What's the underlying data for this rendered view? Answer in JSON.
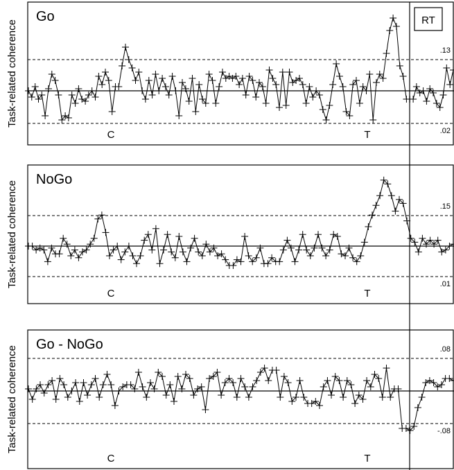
{
  "chart_data": [
    {
      "type": "line",
      "title": "Go",
      "ylabel": "Task-related coherence",
      "upper_threshold": ".13",
      "lower_threshold": ".02",
      "markers": [
        "C",
        "T"
      ],
      "rt_label": "RT",
      "values": [
        0,
        -0.3,
        0.2,
        -0.4,
        -0.2,
        -1.2,
        0.1,
        0.8,
        0.5,
        -0.2,
        -1.4,
        -1.2,
        -1.3,
        -0.2,
        -0.6,
        0.1,
        -0.4,
        -0.5,
        -0.2,
        0,
        -0.3,
        0.7,
        0.3,
        0.9,
        0.5,
        -1,
        0.2,
        0.2,
        1.2,
        2.1,
        1.5,
        1.1,
        0.5,
        0.9,
        0,
        -0.4,
        0.5,
        -0.2,
        0.8,
        0,
        0.6,
        0.2,
        -0.2,
        0.7,
        0,
        -1.2,
        0.4,
        0.1,
        -0.5,
        0.6,
        -1,
        0.3,
        -0.4,
        -0.6,
        0.8,
        0.5,
        -0.6,
        0.2,
        0.9,
        0.6,
        0.7,
        0.6,
        0.7,
        0.3,
        0.6,
        -0.2,
        0.7,
        0.5,
        -0.3,
        0.4,
        0.2,
        -0.6,
        1,
        0.6,
        0.3,
        -0.8,
        0.9,
        -0.7,
        0.9,
        0.4,
        0.5,
        0.6,
        0.3,
        -0.6,
        0.2,
        -0.3,
        0,
        -0.2,
        -0.9,
        -1.4,
        -0.7,
        0.3,
        1.3,
        0.7,
        0.2,
        -1,
        -1.2,
        0.3,
        0.5,
        -0.6,
        0.2,
        0,
        0.8,
        -1.4,
        0.4,
        0.8,
        0.6,
        1.8,
        2.9,
        3.5,
        3.1,
        1.2,
        0.7,
        -0.4,
        -0.4,
        -0.4,
        0.2,
        -0.1,
        0,
        -0.5,
        0.1,
        -0.1,
        -0.6,
        -0.8,
        -0.2,
        1.1,
        0.3,
        1
      ]
    },
    {
      "type": "line",
      "title": "NoGo",
      "ylabel": "Task-related coherence",
      "upper_threshold": ".15",
      "lower_threshold": ".01",
      "markers": [
        "C",
        "T"
      ],
      "values": [
        0,
        0,
        -0.2,
        -0.1,
        -0.2,
        -0.8,
        -0.1,
        -0.4,
        -0.4,
        0.4,
        0.1,
        -0.5,
        -0.2,
        -0.6,
        -0.3,
        -0.2,
        0.1,
        0.4,
        1.4,
        1.6,
        0.7,
        -0.5,
        -0.2,
        0,
        -0.7,
        -0.3,
        0,
        -0.5,
        -0.9,
        -0.5,
        0.3,
        0.6,
        -0.2,
        0.9,
        -0.9,
        -0.2,
        0.6,
        -0.3,
        -0.6,
        0.5,
        -0.3,
        -0.8,
        -0.1,
        0.4,
        -0.3,
        -0.5,
        0.1,
        -0.3,
        -0.1,
        -0.5,
        -0.4,
        -0.7,
        -1,
        -1,
        -0.7,
        -0.8,
        0.5,
        -0.5,
        -0.8,
        -0.6,
        -0.1,
        -0.9,
        -0.9,
        -0.6,
        -0.8,
        -0.8,
        -0.2,
        0.3,
        -0.1,
        -0.8,
        -0.2,
        0.6,
        -0.2,
        -0.5,
        -0.1,
        0.6,
        -0.1,
        -0.5,
        -0.2,
        0.6,
        0.5,
        -0.4,
        -0.5,
        -0.1,
        -0.6,
        -0.8,
        -0.5,
        0.2,
        1,
        1.6,
        2.1,
        2.6,
        3.4,
        3.2,
        2.6,
        1.8,
        2.4,
        2.2,
        1.3,
        0.4,
        0.2,
        -0.3,
        0.4,
        0.1,
        0.3,
        0.1,
        0.3,
        -0.3,
        -0.2,
        0,
        0.1
      ]
    },
    {
      "type": "line",
      "title": "Go - NoGo",
      "ylabel": "Task-related coherence",
      "upper_threshold": ".08",
      "lower_threshold": "-.08",
      "markers": [
        "C",
        "T"
      ],
      "values": [
        0.1,
        -0.4,
        0.1,
        0.3,
        -0.1,
        0.3,
        0.5,
        -0.4,
        0.6,
        0.3,
        -0.3,
        0,
        0.4,
        -0.5,
        0.4,
        -0.2,
        0.3,
        0.6,
        -0.3,
        0.3,
        0.8,
        0.3,
        -0.7,
        0,
        0.2,
        0.3,
        0.3,
        0.1,
        0.9,
        0.2,
        -0.3,
        0.4,
        0.1,
        0.9,
        0.7,
        -0.2,
        0.3,
        -0.5,
        0.7,
        0.1,
        0.8,
        0.6,
        -0.2,
        0.1,
        0.2,
        -0.9,
        0.6,
        0.7,
        0.9,
        -0.2,
        0.4,
        0.6,
        0.4,
        -0.3,
        0.6,
        0.2,
        -0.3,
        0.2,
        0.5,
        0.9,
        1.1,
        0.5,
        1,
        1,
        -0.3,
        0.7,
        0.4,
        -0.5,
        -0.3,
        0.5,
        -0.3,
        -0.6,
        -0.6,
        -0.5,
        -0.7,
        0.2,
        0.5,
        -0.2,
        0.7,
        0.5,
        -0.3,
        0.5,
        0.3,
        -0.6,
        -0.2,
        -0.4,
        0.5,
        0.2,
        0.8,
        0.6,
        -0.3,
        1.1,
        -0.3,
        0.1,
        0.1,
        -1.8,
        -1.8,
        -1.9,
        -1.7,
        -0.8,
        -0.3,
        0.4,
        0.5,
        0.4,
        0.2,
        0.3,
        0.6,
        0.6,
        0.5
      ]
    }
  ]
}
